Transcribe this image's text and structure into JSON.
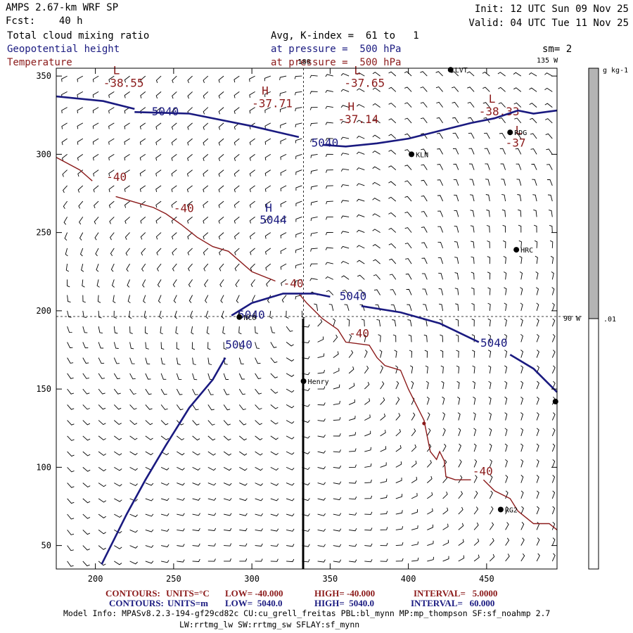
{
  "header": {
    "left_line1": "AMPS 2.67-km WRF SP",
    "left_line2": "Fcst:    40 h",
    "field1": "Total cloud mixing ratio",
    "field2": "Geopotential height",
    "field3": "Temperature",
    "init": "Init: 12 UTC Sun 09 Nov 25",
    "valid": "Valid: 04 UTC Tue 11 Nov 25",
    "avg": "Avg, K-index =  61 to   1",
    "pressure1": "at pressure =  500 hPa",
    "pressure2": "at pressure =  500 hPa",
    "smoothing": "sm= 2"
  },
  "chart_data": {
    "type": "contour_map",
    "title": "AMPS 2.67-km WRF SP",
    "xlim": [
      175,
      495
    ],
    "ylim": [
      35,
      355
    ],
    "xticks": [
      200,
      250,
      300,
      350,
      400,
      450
    ],
    "yticks": [
      50,
      100,
      150,
      200,
      250,
      300,
      350
    ],
    "height_contours": {
      "units": "m",
      "value": 5040,
      "labels": [
        "5040",
        "5040",
        "5040",
        "5040",
        "5040",
        "5040"
      ],
      "lines": [
        [
          [
            175,
            337
          ],
          [
            205,
            334
          ],
          [
            225,
            329
          ]
        ],
        [
          [
            225,
            327
          ],
          [
            260,
            326
          ],
          [
            300,
            318
          ],
          [
            330,
            311
          ]
        ],
        [
          [
            345,
            306
          ],
          [
            360,
            305
          ],
          [
            380,
            307
          ],
          [
            400,
            310
          ],
          [
            420,
            315
          ],
          [
            440,
            320
          ],
          [
            455,
            323
          ],
          [
            470,
            328
          ],
          [
            480,
            326
          ],
          [
            495,
            328
          ]
        ],
        [
          [
            287,
            197
          ],
          [
            300,
            205
          ],
          [
            320,
            211
          ],
          [
            340,
            211
          ],
          [
            350,
            209
          ]
        ],
        [
          [
            370,
            203
          ],
          [
            395,
            199
          ],
          [
            420,
            192
          ],
          [
            445,
            180
          ]
        ],
        [
          [
            465,
            172
          ],
          [
            480,
            163
          ],
          [
            495,
            148
          ]
        ],
        [
          [
            283,
            170
          ],
          [
            275,
            156
          ],
          [
            260,
            138
          ],
          [
            245,
            114
          ],
          [
            232,
            92
          ],
          [
            220,
            70
          ],
          [
            204,
            38
          ]
        ]
      ],
      "label_positions": [
        [
          236,
          325
        ],
        [
          338,
          305
        ],
        [
          291,
          195
        ],
        [
          283,
          176
        ],
        [
          356,
          207
        ],
        [
          446,
          177
        ]
      ]
    },
    "temperature_contours": {
      "units": "°C",
      "value": -40,
      "labels": [
        "-40",
        "-40",
        "-40",
        "-40",
        "-40"
      ],
      "lines": [
        [
          [
            175,
            298
          ],
          [
            190,
            290
          ],
          [
            198,
            283
          ]
        ],
        [
          [
            213,
            273
          ],
          [
            230,
            268
          ],
          [
            237,
            266
          ],
          [
            245,
            262
          ],
          [
            255,
            255
          ],
          [
            265,
            247
          ],
          [
            275,
            241
          ],
          [
            285,
            238
          ],
          [
            300,
            225
          ],
          [
            315,
            219
          ]
        ],
        [
          [
            330,
            211
          ],
          [
            335,
            205
          ],
          [
            345,
            195
          ],
          [
            355,
            188
          ],
          [
            360,
            180
          ],
          [
            375,
            178
          ],
          [
            380,
            170
          ],
          [
            385,
            165
          ],
          [
            395,
            162
          ],
          [
            400,
            150
          ],
          [
            405,
            140
          ],
          [
            410,
            130
          ],
          [
            412,
            120
          ],
          [
            414,
            110
          ],
          [
            418,
            105
          ],
          [
            420,
            110
          ],
          [
            423,
            104
          ],
          [
            424,
            94
          ],
          [
            430,
            92
          ],
          [
            440,
            92
          ]
        ],
        [
          [
            448,
            92
          ],
          [
            455,
            85
          ],
          [
            465,
            80
          ],
          [
            470,
            72
          ],
          [
            475,
            68
          ],
          [
            480,
            64
          ],
          [
            490,
            64
          ],
          [
            495,
            60
          ]
        ]
      ],
      "label_positions": [
        [
          207,
          283
        ],
        [
          250,
          263
        ],
        [
          320,
          215
        ],
        [
          362,
          183
        ],
        [
          441,
          95
        ]
      ],
      "extremes": [
        {
          "type": "L",
          "value": "-38.55",
          "x": 205,
          "y": 343
        },
        {
          "type": "H",
          "value": "-37.71",
          "x": 300,
          "y": 330
        },
        {
          "type": "L",
          "value": "-37.65",
          "x": 359,
          "y": 343
        },
        {
          "type": "H",
          "value": "-37.14",
          "x": 355,
          "y": 320
        },
        {
          "type": "L",
          "value": "-38.33",
          "x": 445,
          "y": 325
        },
        {
          "type": "L",
          "value": "-37",
          "x": 462,
          "y": 305
        }
      ]
    },
    "height_high": {
      "label": "H",
      "value": "5044",
      "x": 305,
      "y": 257
    },
    "stations": [
      {
        "name": "LVT",
        "x": 427,
        "y": 354
      },
      {
        "name": "RDG",
        "x": 465,
        "y": 314
      },
      {
        "name": "KLN",
        "x": 402,
        "y": 300
      },
      {
        "name": "HRC",
        "x": 469,
        "y": 239
      },
      {
        "name": "NCO",
        "x": 292,
        "y": 196
      },
      {
        "name": "Henry",
        "x": 333,
        "y": 155
      },
      {
        "name": "RG2",
        "x": 459,
        "y": 73
      },
      {
        "name": "",
        "x": 494,
        "y": 142
      }
    ],
    "meridians": [
      {
        "label": "180",
        "x": 333
      },
      {
        "label": "135 W",
        "x": 458
      },
      {
        "label": "90 W",
        "x": 470
      }
    ],
    "colorbar": {
      "units": "g kg-1",
      "tick_label": ".01",
      "fill_fraction": 0.5
    }
  },
  "footer": {
    "line1_label": "CONTOURS:",
    "line1_units": "UNITS=°C",
    "line1_low": "LOW= -40.000",
    "line1_high": "HIGH= -40.000",
    "line1_interval": "INTERVAL=   5.0000",
    "line2_label": "CONTOURS:",
    "line2_units": "UNITS=m",
    "line2_low": "LOW=  5040.0",
    "line2_high": "HIGH=  5040.0",
    "line2_interval": "INTERVAL=   60.000",
    "model_info": "Model Info: MPASv8.2.3-194-gf29cd82c CU:cu_grell_freitas PBL:bl_mynn MP:mp_thompson SF:sf_noahmp 2.7",
    "model_info2": "LW:rrtmg_lw SW:rrtmg_sw SFLAY:sf_mynn"
  },
  "colors": {
    "height": "#1a1a80",
    "temperature": "#8b1a1a",
    "barb": "#000000",
    "colorbar_fill": "#b4b4b4"
  }
}
